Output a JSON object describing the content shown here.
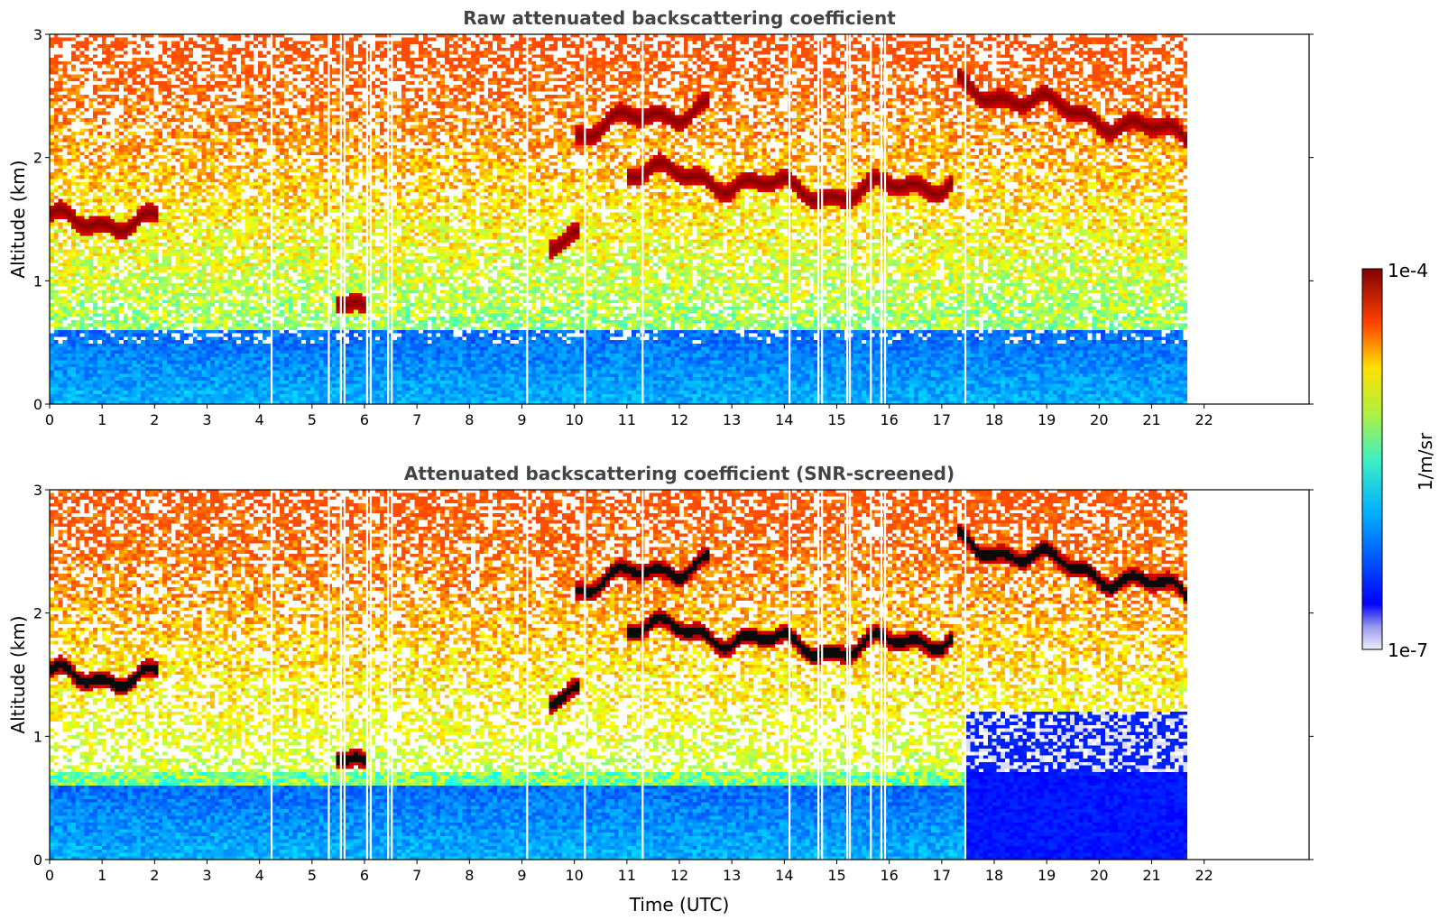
{
  "chart_data": [
    {
      "type": "heatmap",
      "title": "Raw attenuated backscattering coefficient",
      "xlabel": "",
      "ylabel": "Altitude (km)",
      "xlim": [
        0,
        24
      ],
      "ylim": [
        0,
        3
      ],
      "x_ticks": [
        "0",
        "1",
        "2",
        "3",
        "4",
        "5",
        "6",
        "7",
        "8",
        "9",
        "10",
        "11",
        "12",
        "13",
        "14",
        "15",
        "16",
        "17",
        "18",
        "19",
        "20",
        "21",
        "22"
      ],
      "y_ticks": [
        "0",
        "1",
        "2",
        "3"
      ],
      "data_end_time": 21.7,
      "cloud_layers": [
        {
          "t_start": 0.0,
          "t_end": 2.1,
          "altitude_km": 1.48
        },
        {
          "t_start": 5.5,
          "t_end": 6.0,
          "altitude_km": 0.8
        },
        {
          "t_start": 9.5,
          "t_end": 10.1,
          "altitude_km": 1.35
        },
        {
          "t_start": 10.0,
          "t_end": 12.6,
          "altitude_km": 2.3
        },
        {
          "t_start": 11.0,
          "t_end": 17.2,
          "altitude_km": 1.8
        },
        {
          "t_start": 17.3,
          "t_end": 21.7,
          "altitude_km": 2.3
        }
      ],
      "data_gaps_hours": [
        4.23,
        5.32,
        5.55,
        5.62,
        6.05,
        6.12,
        6.45,
        6.52,
        9.1,
        10.2,
        11.3,
        14.1,
        14.65,
        14.72,
        15.2,
        15.25,
        15.65,
        15.85,
        15.92,
        17.45
      ]
    },
    {
      "type": "heatmap",
      "title": "Attenuated backscattering coefficient (SNR-screened)",
      "xlabel": "Time (UTC)",
      "ylabel": "Altitude (km)",
      "xlim": [
        0,
        24
      ],
      "ylim": [
        0,
        3
      ],
      "x_ticks": [
        "0",
        "1",
        "2",
        "3",
        "4",
        "5",
        "6",
        "7",
        "8",
        "9",
        "10",
        "11",
        "12",
        "13",
        "14",
        "15",
        "16",
        "17",
        "18",
        "19",
        "20",
        "21",
        "22"
      ],
      "y_ticks": [
        "0",
        "1",
        "2",
        "3"
      ],
      "data_end_time": 21.7,
      "saturated_color": "#000000"
    }
  ],
  "colorbar": {
    "label": "1/m/sr",
    "max_label": "1e-4",
    "min_label": "1e-7",
    "scale": "log",
    "colormap": "jet"
  }
}
